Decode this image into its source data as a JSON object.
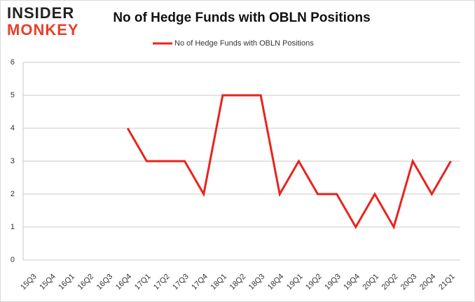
{
  "logo": {
    "line1": "INSIDER",
    "line2": "MONKEY"
  },
  "chart_data": {
    "type": "line",
    "title": "No of Hedge Funds with OBLN Positions",
    "categories": [
      "15Q3",
      "15Q4",
      "16Q1",
      "16Q2",
      "16Q3",
      "16Q4",
      "17Q1",
      "17Q2",
      "17Q3",
      "17Q4",
      "18Q1",
      "18Q2",
      "18Q3",
      "18Q4",
      "19Q1",
      "19Q2",
      "19Q3",
      "19Q4",
      "20Q1",
      "20Q2",
      "20Q3",
      "20Q4",
      "21Q1"
    ],
    "series": [
      {
        "name": "No of Hedge Funds with OBLN Positions",
        "color": "#e8231e",
        "values": [
          null,
          null,
          null,
          null,
          null,
          4,
          3,
          3,
          3,
          2,
          5,
          5,
          5,
          2,
          3,
          2,
          2,
          1,
          2,
          1,
          3,
          2,
          3
        ]
      }
    ],
    "ylim": [
      0,
      6
    ],
    "yticks": [
      0,
      1,
      2,
      3,
      4,
      5,
      6
    ],
    "grid": true,
    "legend": "top"
  }
}
